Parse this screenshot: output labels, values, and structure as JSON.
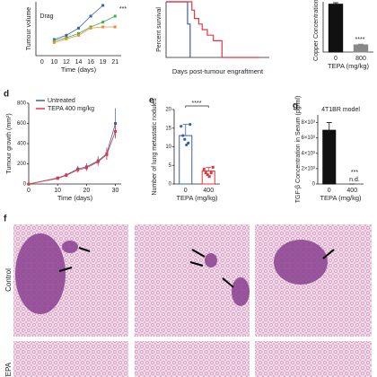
{
  "chart_data": [
    {
      "type": "line",
      "ylabel": "Tumour volume",
      "xlabel": "Time (days)",
      "categories": [
        "0",
        "10",
        "12",
        "14",
        "16",
        "19",
        "21"
      ],
      "ylim": [
        0,
        450
      ],
      "series": [
        {
          "color": "#3a5fa8",
          "values": [
            null,
            135,
            170,
            230,
            330,
            420,
            null
          ]
        },
        {
          "color": "#3fae49",
          "values": [
            null,
            125,
            150,
            185,
            240,
            280,
            330
          ]
        },
        {
          "color": "#f28c28",
          "values": [
            null,
            110,
            140,
            170,
            230,
            240,
            240
          ]
        }
      ],
      "annotations": [
        "Drag",
        "***"
      ]
    },
    {
      "type": "step",
      "ylabel": "Percent survival",
      "xlabel": "Days post-tumour engraftment",
      "xlim": [
        0,
        120
      ],
      "ylim": [
        0,
        100
      ],
      "series": [
        {
          "color": "#3a5fa8",
          "x": [
            0,
            25,
            28
          ],
          "values": [
            100,
            60,
            0
          ]
        },
        {
          "color": "#e5373b",
          "x": [
            0,
            30,
            33,
            38,
            42,
            48,
            55,
            65,
            110
          ],
          "values": [
            100,
            85,
            70,
            60,
            50,
            40,
            30,
            0,
            0
          ]
        }
      ]
    },
    {
      "type": "bar",
      "ylabel": "Copper Concentration in",
      "xlabel": "TEPA (mg/kg)",
      "categories": [
        "0",
        "800"
      ],
      "values": [
        100,
        15
      ],
      "errors": [
        3,
        1.5
      ],
      "colors": [
        "#111111",
        "#888888"
      ],
      "ylim": [
        0,
        105
      ],
      "annotations": [
        "****"
      ]
    },
    {
      "type": "line",
      "panel_label": "d",
      "ylabel": "Tumour growth (mm³)",
      "xlabel": "Time (days)",
      "x": [
        0,
        10,
        13,
        17,
        20,
        24,
        27,
        30
      ],
      "xlim": [
        0,
        32
      ],
      "xticks": [
        0,
        10,
        20,
        30
      ],
      "ylim": [
        0,
        800
      ],
      "yticks": [
        0,
        200,
        400,
        600,
        800
      ],
      "legend": "top-left",
      "series": [
        {
          "name": "Untreated",
          "color": "#3a5fa8",
          "values": [
            0,
            60,
            90,
            150,
            170,
            230,
            300,
            600
          ],
          "errors": [
            0,
            15,
            20,
            30,
            35,
            45,
            60,
            150
          ]
        },
        {
          "name": "TEPA 400 mg/kg",
          "color": "#e5373b",
          "values": [
            0,
            55,
            85,
            140,
            160,
            220,
            290,
            520
          ],
          "errors": [
            0,
            12,
            18,
            28,
            30,
            40,
            50,
            60
          ]
        }
      ]
    },
    {
      "type": "bar",
      "panel_label": "e",
      "bar_style": "outline",
      "ylabel": "Number of lung metastatic nodules",
      "xlabel": "TEPA (mg/kg)",
      "categories": [
        "0",
        "400"
      ],
      "values": [
        13,
        3.5
      ],
      "errors": [
        3,
        1
      ],
      "colors": [
        "#3a5fa8",
        "#e5373b"
      ],
      "points": [
        [
          15.5,
          13,
          12,
          10.5,
          11,
          16
        ],
        [
          4,
          3,
          2.5,
          2,
          3,
          4.5
        ]
      ],
      "ylim": [
        0,
        20
      ],
      "yticks": [
        0,
        5,
        10,
        15,
        20
      ],
      "annotations": [
        "****"
      ]
    },
    {
      "type": "bar",
      "panel_label": "g",
      "title": "4T1BR model",
      "ylabel": "TGF-β Concentration in Serum (pg/ml)",
      "xlabel": "TEPA (mg/kg)",
      "categories": [
        "0",
        "400"
      ],
      "values": [
        7000,
        0
      ],
      "errors": [
        1000,
        0
      ],
      "colors": [
        "#111111",
        "#111111"
      ],
      "ylim": [
        0,
        9000
      ],
      "yticks": [
        0,
        {
          "value": 2000,
          "label": "2×10³"
        },
        {
          "value": 4000,
          "label": "4×10³"
        },
        {
          "value": 6000,
          "label": "6×10³"
        },
        {
          "value": 8000,
          "label": "8×10³"
        }
      ],
      "annotations": [
        "***",
        "n.d."
      ]
    }
  ],
  "histology": {
    "panel_label": "f",
    "row_labels": [
      "Control",
      "TEPA"
    ]
  }
}
